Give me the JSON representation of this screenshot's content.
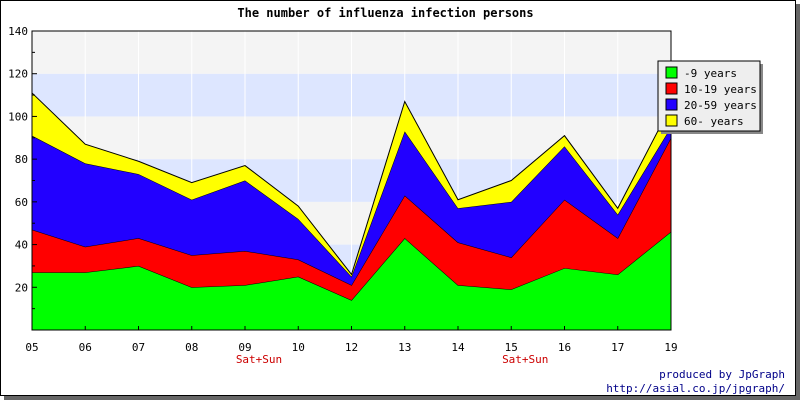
{
  "chart_data": {
    "type": "area",
    "stacked": true,
    "title": "The number of influenza infection persons",
    "xlabel": "",
    "ylabel": "",
    "categories": [
      "05",
      "06",
      "07",
      "08",
      "09",
      "10",
      "12",
      "13",
      "14",
      "15",
      "16",
      "17",
      "19"
    ],
    "sublabels": [
      "",
      "",
      "",
      "",
      "Sat+Sun",
      "",
      "",
      "",
      "",
      "Sat+Sun",
      "",
      "",
      ""
    ],
    "ylim": [
      0,
      140
    ],
    "yticks": [
      20,
      40,
      60,
      80,
      100,
      120,
      140
    ],
    "grid": true,
    "legend_position": "top-right",
    "series": [
      {
        "name": "-9 years",
        "color": "#00ff00",
        "values": [
          27,
          27,
          30,
          20,
          21,
          25,
          14,
          43,
          21,
          19,
          29,
          26,
          46
        ]
      },
      {
        "name": "10-19 years",
        "color": "#ff0000",
        "values": [
          20,
          12,
          13,
          15,
          16,
          8,
          7,
          20,
          20,
          15,
          32,
          17,
          44
        ]
      },
      {
        "name": "20-59 years",
        "color": "#2200ff",
        "values": [
          44,
          39,
          30,
          26,
          33,
          19,
          4,
          30,
          16,
          26,
          25,
          11,
          5
        ]
      },
      {
        "name": "60- years",
        "color": "#ffff00",
        "values": [
          20,
          9,
          6,
          8,
          7,
          6,
          1,
          14,
          4,
          10,
          5,
          3,
          10
        ]
      }
    ]
  },
  "footer": {
    "line1": "produced by JpGraph",
    "line2": "http://asial.co.jp/jpgraph/"
  }
}
